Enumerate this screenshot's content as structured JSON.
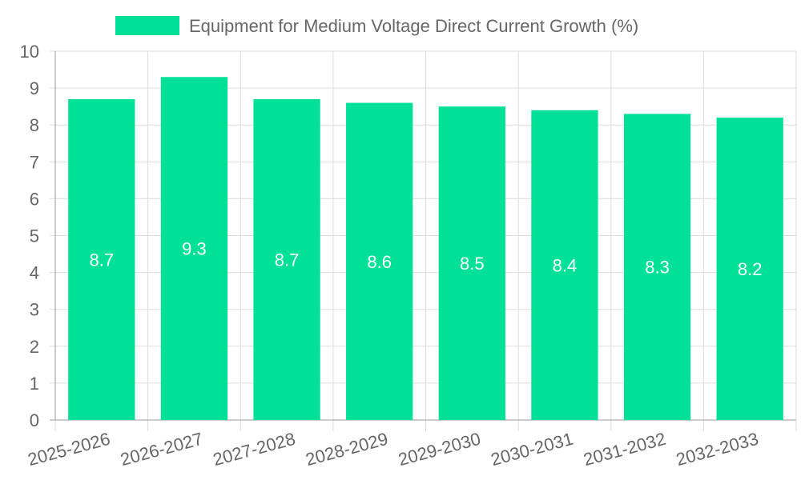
{
  "chart_data": {
    "type": "bar",
    "title": "",
    "xlabel": "",
    "ylabel": "",
    "legend": [
      "Equipment for Medium Voltage Direct Current Growth (%)"
    ],
    "legend_position": "top-center",
    "categories": [
      "2025-2026",
      "2026-2027",
      "2027-2028",
      "2028-2029",
      "2029-2030",
      "2030-2031",
      "2031-2032",
      "2032-2033"
    ],
    "series": [
      {
        "name": "Equipment for Medium Voltage Direct Current Growth (%)",
        "values": [
          8.7,
          9.3,
          8.7,
          8.6,
          8.5,
          8.4,
          8.3,
          8.2
        ],
        "color": "#00e096"
      }
    ],
    "ylim": [
      0,
      10
    ],
    "yticks": [
      0,
      1,
      2,
      3,
      4,
      5,
      6,
      7,
      8,
      9,
      10
    ],
    "grid": true,
    "data_labels": [
      "8.7",
      "9.3",
      "8.7",
      "8.6",
      "8.5",
      "8.4",
      "8.3",
      "8.2"
    ]
  },
  "colors": {
    "bar": "#00e096",
    "grid": "#dddddd",
    "axis": "#999999",
    "text": "#666666",
    "label": "#ffffff"
  }
}
